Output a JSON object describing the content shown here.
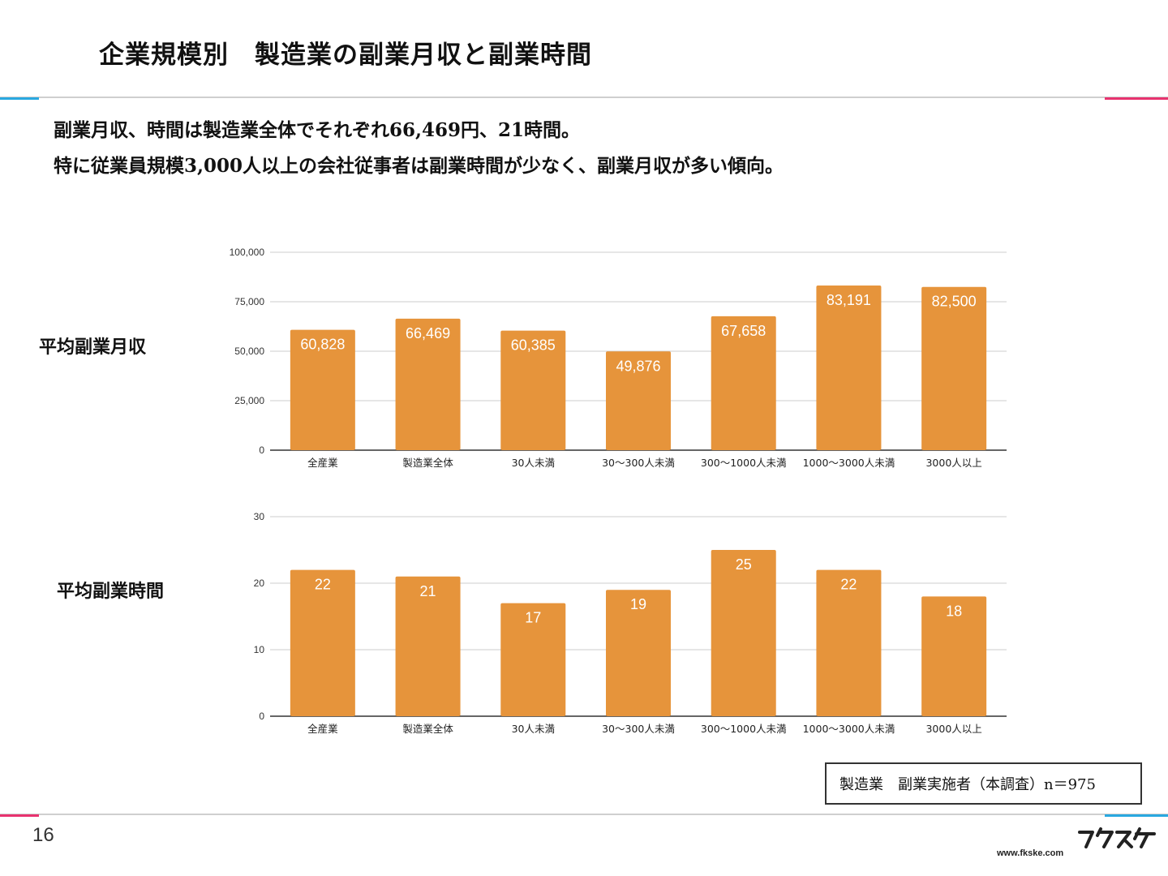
{
  "title": "企業規模別　製造業の副業月収と副業時間",
  "lead": {
    "line1": "副業月収、時間は製造業全体でそれぞれ66,469円、21時間。",
    "line2": "特に従業員規模3,000人以上の会社従事者は副業時間が少なく、副業月収が多い傾向。"
  },
  "labels": {
    "income": "平均副業月収",
    "hours": "平均副業時間"
  },
  "legend_box": "製造業　副業実施者（本調査）n＝975",
  "footer": {
    "page_number": "16",
    "site": "www.fkske.com",
    "logo_text": "フクスケ"
  },
  "colors": {
    "bar": "#e6943b",
    "bar_label": "#ffffff",
    "grid": "#cccccc",
    "accent_blue": "#29a8e0",
    "accent_pink": "#e8336f"
  },
  "chart_data": [
    {
      "type": "bar",
      "categories": [
        "全産業",
        "製造業全体",
        "30人未満",
        "30〜300人未満",
        "300〜1000人未満",
        "1000〜3000人未満",
        "3000人以上"
      ],
      "values": [
        60828,
        66469,
        60385,
        49876,
        67658,
        83191,
        82500
      ],
      "value_labels": [
        "60,828",
        "66,469",
        "60,385",
        "49,876",
        "67,658",
        "83,191",
        "82,500"
      ],
      "yticks": [
        0,
        25000,
        50000,
        75000,
        100000
      ],
      "ytick_labels": [
        "0",
        "25,000",
        "50,000",
        "75,000",
        "100,000"
      ],
      "ylim": [
        0,
        100000
      ],
      "grid": true
    },
    {
      "type": "bar",
      "categories": [
        "全産業",
        "製造業全体",
        "30人未満",
        "30〜300人未満",
        "300〜1000人未満",
        "1000〜3000人未満",
        "3000人以上"
      ],
      "values": [
        22,
        21,
        17,
        19,
        25,
        22,
        18
      ],
      "value_labels": [
        "22",
        "21",
        "17",
        "19",
        "25",
        "22",
        "18"
      ],
      "yticks": [
        0,
        10,
        20,
        30
      ],
      "ytick_labels": [
        "0",
        "10",
        "20",
        "30"
      ],
      "ylim": [
        0,
        30
      ],
      "grid": true
    }
  ]
}
